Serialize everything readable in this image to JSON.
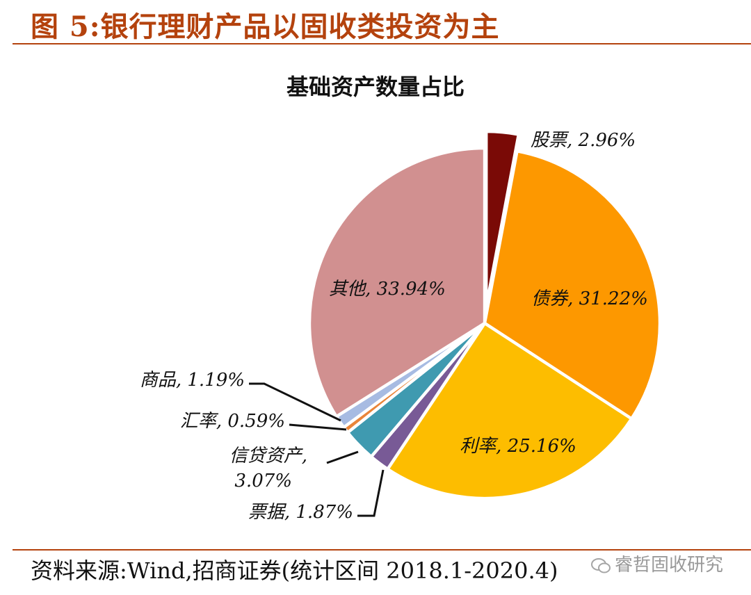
{
  "figure_title": "图 5:银行理财产品以固收类投资为主",
  "source_note": "资料来源:Wind,招商证券(统计区间 2018.1-2020.4)",
  "watermark": "睿哲固收研究",
  "chart_data": {
    "type": "pie",
    "title": "基础资产数量占比",
    "slices": [
      {
        "name": "股票",
        "value": 2.96,
        "label": "股票, 2.96%",
        "color": "#7a0a06",
        "exploded": true
      },
      {
        "name": "债券",
        "value": 31.22,
        "label": "债券, 31.22%",
        "color": "#fd9800"
      },
      {
        "name": "利率",
        "value": 25.16,
        "label": "利率, 25.16%",
        "color": "#fdbd00"
      },
      {
        "name": "票据",
        "value": 1.87,
        "label": "票据, 1.87%",
        "color": "#785a96"
      },
      {
        "name": "信贷资产",
        "value": 3.07,
        "label_line1": "信贷资产,",
        "label_line2": "3.07%",
        "color": "#3f9ab0"
      },
      {
        "name": "汇率",
        "value": 0.59,
        "label": "汇率, 0.59%",
        "color": "#e9853a"
      },
      {
        "name": "商品",
        "value": 1.19,
        "label": "商品, 1.19%",
        "color": "#a7bbe2"
      },
      {
        "name": "其他",
        "value": 33.94,
        "label": "其他, 33.94%",
        "color": "#d19090"
      }
    ]
  }
}
